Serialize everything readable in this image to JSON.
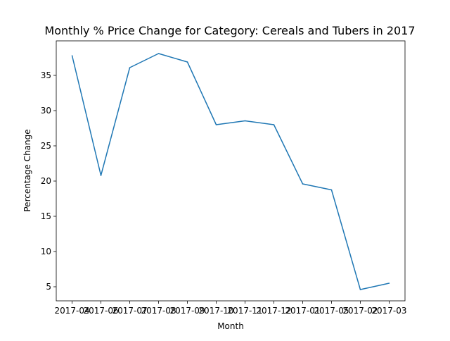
{
  "chart_data": {
    "type": "line",
    "title": "Monthly % Price Change for Category: Cereals and Tubers in 2017",
    "xlabel": "Month",
    "ylabel": "Percentage Change",
    "categories": [
      "2017-04",
      "2017-06",
      "2017-07",
      "2017-08",
      "2017-09",
      "2017-10",
      "2017-11",
      "2017-12",
      "2017-01",
      "2017-05",
      "2017-02",
      "2017-03"
    ],
    "series": [
      {
        "values": [
          37.8,
          20.8,
          36.1,
          38.1,
          36.9,
          28.0,
          28.55,
          28.0,
          19.6,
          18.75,
          4.6,
          5.5
        ],
        "color": "#1f77b4"
      }
    ],
    "ylim": [
      3.0,
      39.9
    ],
    "yticks": [
      5,
      10,
      15,
      20,
      25,
      30,
      35
    ],
    "grid": false,
    "legend": "none"
  }
}
